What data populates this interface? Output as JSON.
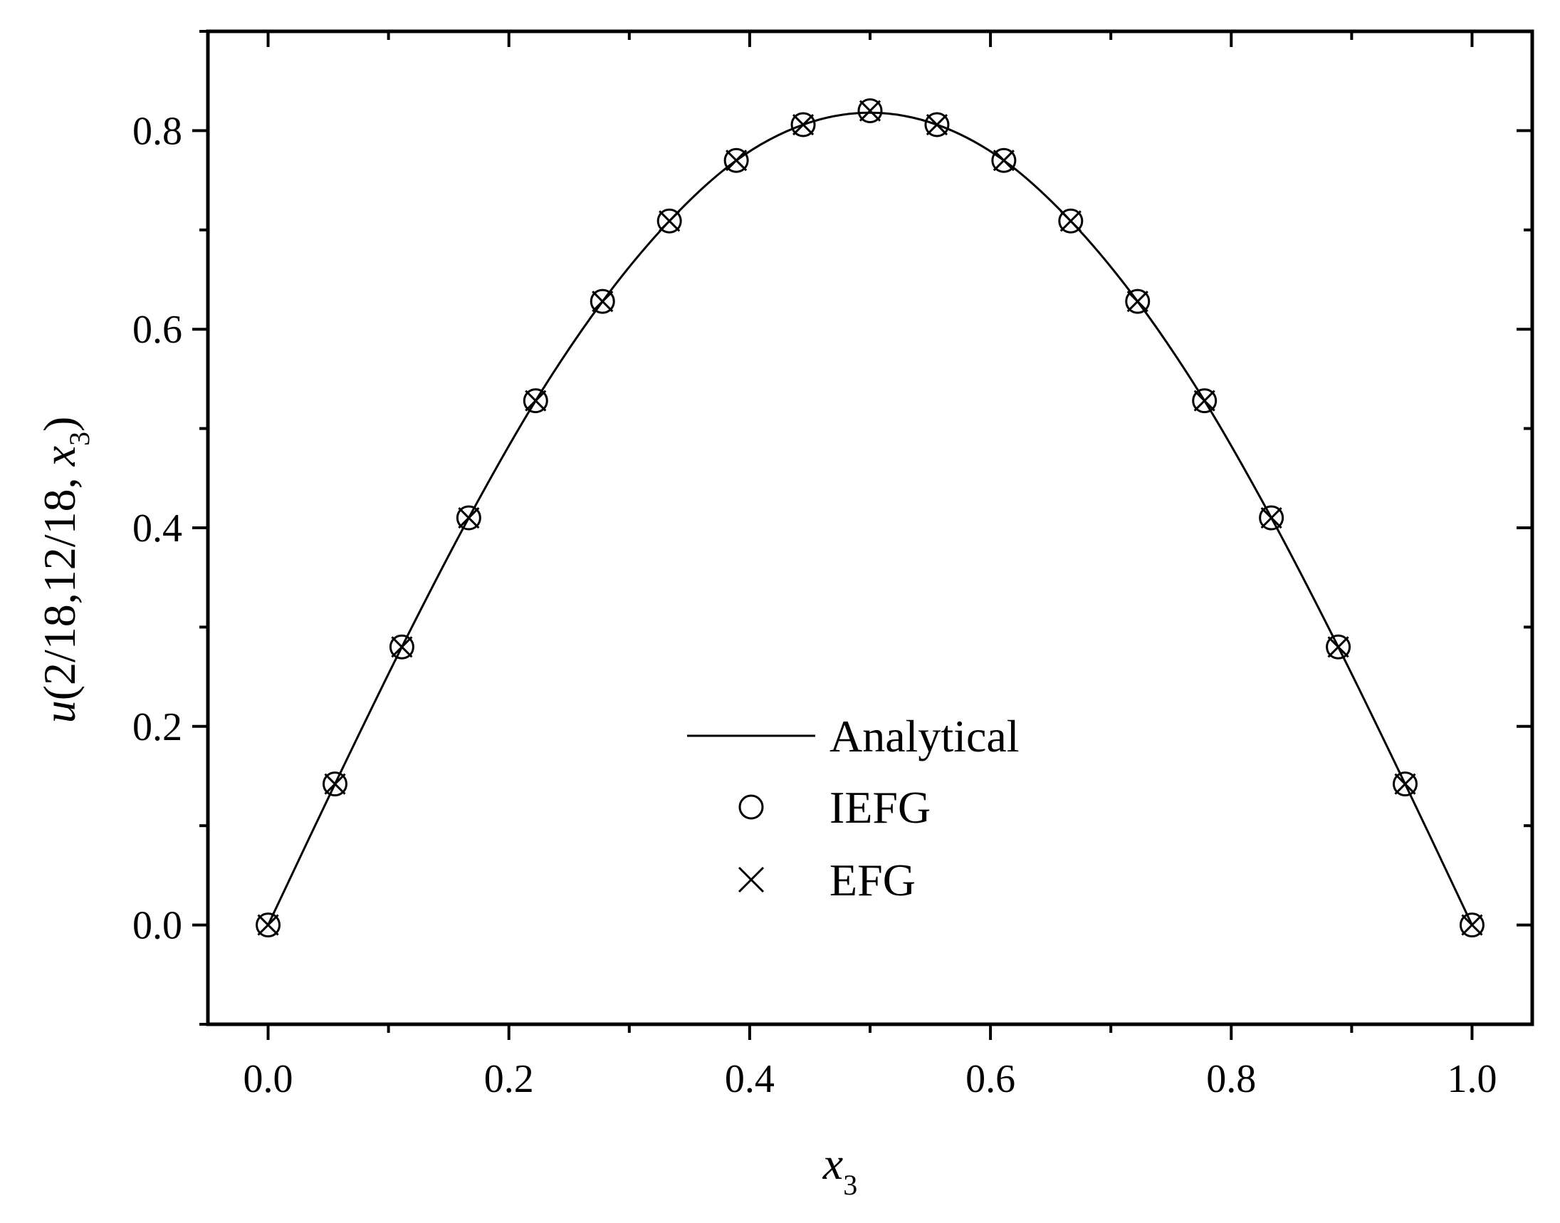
{
  "chart_data": {
    "type": "line",
    "xlabel": {
      "main": "x",
      "sub": "3"
    },
    "ylabel": {
      "var": "u",
      "args": "(2/18,12/18, ",
      "xvar": "x",
      "sub": "3",
      "close": ")"
    },
    "xlim": [
      -0.05,
      1.05
    ],
    "ylim": [
      -0.1,
      0.9
    ],
    "xticks": [
      0.0,
      0.2,
      0.4,
      0.6,
      0.8,
      1.0
    ],
    "xtick_labels": [
      "0.0",
      "0.2",
      "0.4",
      "0.6",
      "0.8",
      "1.0"
    ],
    "yticks": [
      0.0,
      0.2,
      0.4,
      0.6,
      0.8
    ],
    "ytick_labels": [
      "0.0",
      "0.2",
      "0.4",
      "0.6",
      "0.8"
    ],
    "x_minor_step": 0.1,
    "y_minor_step": 0.1,
    "legend_position": "center-bottom",
    "legend": [
      "Analytical",
      "IEFG",
      "EFG"
    ],
    "series": [
      {
        "name": "Analytical",
        "style": "line",
        "x": [
          0.0,
          0.05556,
          0.11111,
          0.16667,
          0.22222,
          0.27778,
          0.33333,
          0.38889,
          0.44444,
          0.5,
          0.55556,
          0.61111,
          0.66667,
          0.72222,
          0.77778,
          0.83333,
          0.88889,
          0.94444,
          1.0
        ],
        "y": [
          0.0,
          0.142,
          0.28,
          0.41,
          0.528,
          0.628,
          0.709,
          0.77,
          0.806,
          0.818,
          0.806,
          0.77,
          0.709,
          0.628,
          0.528,
          0.41,
          0.28,
          0.142,
          0.0
        ]
      },
      {
        "name": "IEFG",
        "style": "circle",
        "x": [
          0.0,
          0.05556,
          0.11111,
          0.16667,
          0.22222,
          0.27778,
          0.33333,
          0.38889,
          0.44444,
          0.5,
          0.55556,
          0.61111,
          0.66667,
          0.72222,
          0.77778,
          0.83333,
          0.88889,
          0.94444,
          1.0
        ],
        "y": [
          0.0,
          0.142,
          0.28,
          0.41,
          0.528,
          0.628,
          0.709,
          0.77,
          0.806,
          0.82,
          0.806,
          0.77,
          0.709,
          0.628,
          0.528,
          0.41,
          0.28,
          0.142,
          0.0
        ]
      },
      {
        "name": "EFG",
        "style": "cross",
        "x": [
          0.0,
          0.05556,
          0.11111,
          0.16667,
          0.22222,
          0.27778,
          0.33333,
          0.38889,
          0.44444,
          0.5,
          0.55556,
          0.61111,
          0.66667,
          0.72222,
          0.77778,
          0.83333,
          0.88889,
          0.94444,
          1.0
        ],
        "y": [
          0.0,
          0.142,
          0.28,
          0.41,
          0.528,
          0.628,
          0.709,
          0.77,
          0.806,
          0.82,
          0.806,
          0.77,
          0.709,
          0.628,
          0.528,
          0.41,
          0.28,
          0.142,
          0.0
        ]
      }
    ]
  }
}
